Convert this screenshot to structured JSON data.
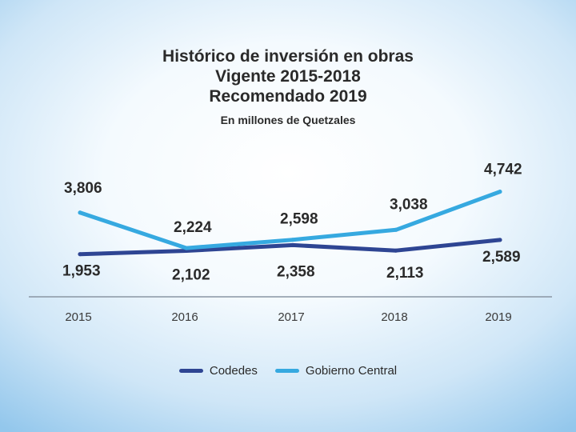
{
  "chart_data": {
    "type": "line",
    "title": [
      "Histórico de inversión en obras",
      "Vigente 2015-2018",
      "Recomendado 2019"
    ],
    "subtitle": "En millones de Quetzales",
    "categories": [
      "2015",
      "2016",
      "2017",
      "2018",
      "2019"
    ],
    "series": [
      {
        "name": "Codedes",
        "color": "#2e4593",
        "values": [
          1953,
          2102,
          2358,
          2113,
          2589
        ],
        "labels": [
          "1,953",
          "2,102",
          "2,358",
          "2,113",
          "2,589"
        ]
      },
      {
        "name": "Gobierno Central",
        "color": "#36a9e0",
        "values": [
          3806,
          2224,
          2598,
          3038,
          4742
        ],
        "labels": [
          "3,806",
          "2,224",
          "2,598",
          "3,038",
          "4,742"
        ]
      }
    ],
    "legend_position": "bottom",
    "grid": false
  }
}
